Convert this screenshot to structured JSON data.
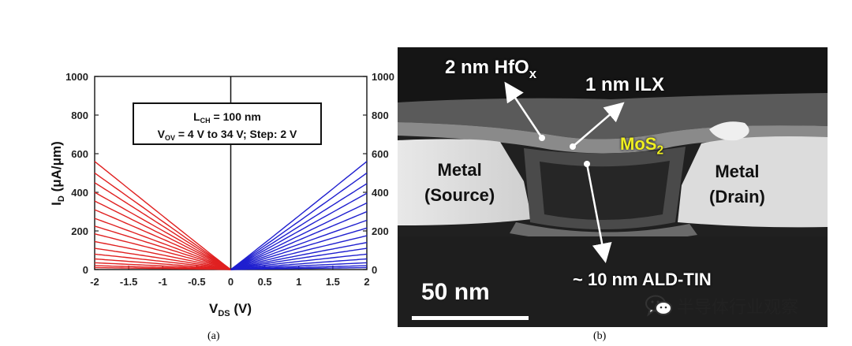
{
  "figure": {
    "caption_a": "(a)",
    "caption_b": "(b)",
    "watermark_text": "半导体行业观察",
    "watermark_icon": "wechat-icon"
  },
  "chart_data": {
    "type": "line",
    "xlim": [
      -2,
      2
    ],
    "ylim": [
      0,
      1000
    ],
    "x_ticks": [
      "-2",
      "-1.5",
      "-1",
      "-0.5",
      "0",
      "0.5",
      "1",
      "1.5",
      "2"
    ],
    "y_ticks_left": [
      "0",
      "200",
      "400",
      "600",
      "800",
      "1000"
    ],
    "y_ticks_right": [
      "0",
      "200",
      "400",
      "600",
      "800",
      "1000"
    ],
    "xlabel_main": "V",
    "xlabel_sub": "DS",
    "xlabel_tail": " (V)",
    "ylabel_main": "I",
    "ylabel_sub": "D",
    "ylabel_tail": " (μA/μm)",
    "annotation_line1_main": "L",
    "annotation_line1_sub": "CH",
    "annotation_line1_tail": " = 100 nm",
    "annotation_line2_main": "V",
    "annotation_line2_sub": "OV",
    "annotation_line2_tail": " = 4 V to 34 V; Step: 2 V",
    "series_colors": {
      "negative": "#e02020",
      "positive": "#1f1fcf"
    },
    "negative_branch_x": [
      -2,
      -1.5,
      -1,
      -0.5,
      0
    ],
    "positive_branch_x": [
      0,
      0.5,
      1,
      1.5,
      2
    ],
    "negative_endpoints": [
      10,
      20,
      35,
      55,
      80,
      110,
      145,
      185,
      225,
      265,
      310,
      355,
      400,
      450,
      500,
      560
    ],
    "positive_endpoints": [
      10,
      20,
      35,
      55,
      80,
      110,
      140,
      175,
      215,
      255,
      300,
      345,
      395,
      445,
      500,
      560
    ]
  },
  "tem": {
    "label_hfox_main": "2 nm HfO",
    "label_hfox_sub": "x",
    "label_ilx": "1 nm ILX",
    "label_mos2_main": "MoS",
    "label_mos2_sub": "2",
    "label_source_line1": "Metal",
    "label_source_line2": "(Source)",
    "label_drain_line1": "Metal",
    "label_drain_line2": "(Drain)",
    "label_tin": "~ 10 nm ALD-TIN",
    "scale_label": "50 nm"
  }
}
